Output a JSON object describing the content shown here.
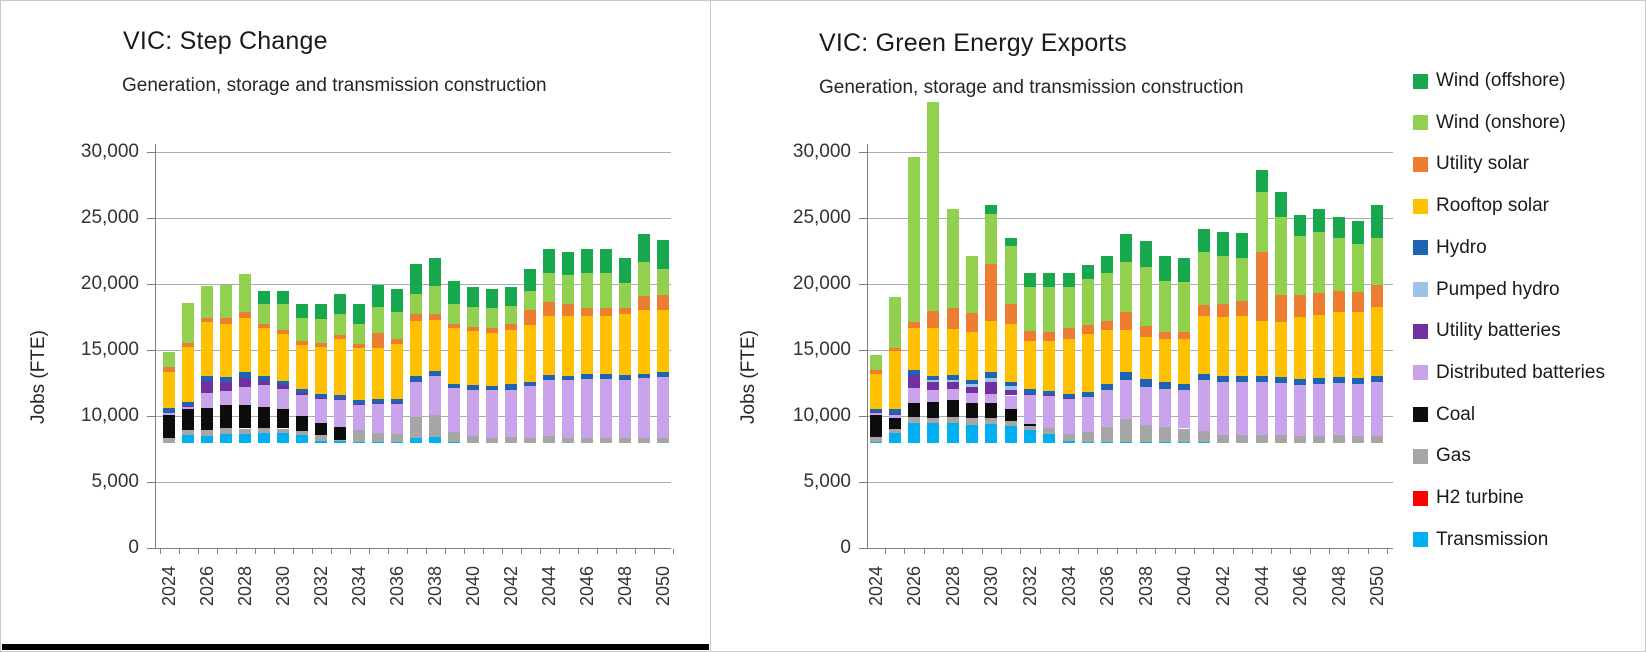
{
  "window": {
    "kind": "report-figure",
    "region": "VIC"
  },
  "legend": {
    "items": [
      {
        "label": "Wind (offshore)",
        "color": "#17a74c"
      },
      {
        "label": "Wind (onshore)",
        "color": "#92d050"
      },
      {
        "label": "Utility solar",
        "color": "#ed7d31"
      },
      {
        "label": "Rooftop solar",
        "color": "#ffc000"
      },
      {
        "label": "Hydro",
        "color": "#1f64b4"
      },
      {
        "label": "Pumped hydro",
        "color": "#9dc3e6"
      },
      {
        "label": "Utility batteries",
        "color": "#7030a0"
      },
      {
        "label": "Distributed batteries",
        "color": "#c9a4ea"
      },
      {
        "label": "Coal",
        "color": "#0d0d0d"
      },
      {
        "label": "Gas",
        "color": "#a6a6a6"
      },
      {
        "label": "H2 turbine",
        "color": "#ff0000"
      },
      {
        "label": "Transmission",
        "color": "#00b0f0"
      }
    ]
  },
  "chart_data": [
    {
      "type": "bar",
      "stacked": true,
      "title": "VIC: Step Change",
      "subtitle": "Generation, storage and transmission construction",
      "ylabel": "Jobs (FTE)",
      "ylim": [
        0,
        30000
      ],
      "grid": true,
      "y_tick_labels": [
        "0",
        "5,000",
        "10,000",
        "15,000",
        "20,000",
        "25,000",
        "30,000"
      ],
      "x_tick_labels_shown": [
        "2024",
        "2026",
        "2028",
        "2030",
        "2032",
        "2034",
        "2036",
        "2038",
        "2040",
        "2042",
        "2044",
        "2046",
        "2048",
        "2050"
      ],
      "categories": [
        2024,
        2025,
        2026,
        2027,
        2028,
        2029,
        2030,
        2031,
        2032,
        2033,
        2034,
        2035,
        2036,
        2037,
        2038,
        2039,
        2040,
        2041,
        2042,
        2043,
        2044,
        2045,
        2046,
        2047,
        2048,
        2049,
        2050
      ],
      "series": [
        {
          "name": "Transmission",
          "color": "#00b0f0",
          "values": [
            0,
            600,
            550,
            650,
            700,
            750,
            750,
            600,
            150,
            150,
            100,
            50,
            50,
            400,
            450,
            50,
            0,
            0,
            0,
            0,
            0,
            0,
            0,
            0,
            0,
            0,
            0
          ]
        },
        {
          "name": "H2 turbine",
          "color": "#ff0000",
          "values": [
            0,
            0,
            0,
            0,
            0,
            0,
            0,
            0,
            0,
            0,
            0,
            0,
            0,
            0,
            0,
            0,
            0,
            0,
            0,
            0,
            0,
            0,
            0,
            0,
            0,
            0,
            0
          ]
        },
        {
          "name": "Gas",
          "color": "#a6a6a6",
          "values": [
            400,
            400,
            450,
            450,
            400,
            400,
            350,
            300,
            450,
            100,
            900,
            700,
            600,
            1600,
            1700,
            800,
            500,
            400,
            450,
            400,
            550,
            350,
            350,
            350,
            350,
            400,
            400
          ]
        },
        {
          "name": "Coal",
          "color": "#0d0d0d",
          "values": [
            1700,
            1550,
            1650,
            1800,
            1800,
            1600,
            1450,
            1150,
            900,
            1000,
            0,
            0,
            0,
            0,
            0,
            0,
            0,
            0,
            0,
            0,
            0,
            0,
            0,
            0,
            0,
            0,
            0
          ]
        },
        {
          "name": "Distributed batteries",
          "color": "#c9a4ea",
          "values": [
            200,
            150,
            1150,
            1050,
            1350,
            1650,
            1550,
            1600,
            1800,
            2000,
            1900,
            2200,
            2300,
            2600,
            2900,
            3300,
            3500,
            3600,
            3600,
            3900,
            4200,
            4400,
            4500,
            4500,
            4400,
            4500,
            4600
          ]
        },
        {
          "name": "Utility batteries",
          "color": "#7030a0",
          "values": [
            0,
            100,
            900,
            700,
            700,
            300,
            300,
            150,
            100,
            100,
            50,
            50,
            100,
            0,
            0,
            0,
            0,
            0,
            0,
            0,
            0,
            0,
            0,
            0,
            0,
            0,
            0
          ]
        },
        {
          "name": "Pumped hydro",
          "color": "#9dc3e6",
          "values": [
            0,
            0,
            0,
            0,
            0,
            0,
            0,
            0,
            0,
            0,
            0,
            0,
            0,
            0,
            0,
            0,
            0,
            0,
            0,
            0,
            0,
            0,
            0,
            0,
            0,
            0,
            0
          ]
        },
        {
          "name": "Hydro",
          "color": "#1f64b4",
          "values": [
            350,
            300,
            350,
            350,
            400,
            350,
            300,
            300,
            300,
            300,
            300,
            300,
            250,
            450,
            400,
            350,
            400,
            350,
            400,
            350,
            400,
            350,
            400,
            400,
            400,
            350,
            350
          ]
        },
        {
          "name": "Rooftop solar",
          "color": "#ffc000",
          "values": [
            2750,
            4200,
            4100,
            4000,
            4100,
            3700,
            3550,
            3300,
            3550,
            4250,
            3950,
            3900,
            4200,
            4200,
            3900,
            4200,
            4100,
            4000,
            4100,
            4300,
            4500,
            4500,
            4400,
            4400,
            4600,
            4800,
            4700
          ]
        },
        {
          "name": "Utility solar",
          "color": "#ed7d31",
          "values": [
            350,
            250,
            350,
            450,
            450,
            300,
            300,
            300,
            300,
            300,
            300,
            1150,
            400,
            500,
            450,
            300,
            300,
            400,
            500,
            1100,
            1000,
            900,
            550,
            550,
            500,
            1100,
            1200
          ]
        },
        {
          "name": "Wind (onshore)",
          "color": "#92d050",
          "values": [
            1150,
            3050,
            2400,
            2500,
            2900,
            1450,
            1950,
            1800,
            1850,
            1600,
            1500,
            1950,
            2000,
            1550,
            2100,
            1550,
            1500,
            1500,
            1300,
            1500,
            2200,
            2200,
            2700,
            2700,
            1850,
            2600,
            1900
          ]
        },
        {
          "name": "Wind (offshore)",
          "color": "#17a74c",
          "values": [
            0,
            0,
            0,
            0,
            0,
            1050,
            1000,
            1000,
            1100,
            1500,
            1550,
            1700,
            1800,
            2250,
            2100,
            1750,
            1500,
            1400,
            1450,
            1650,
            1850,
            1800,
            1800,
            1800,
            1900,
            2100,
            2250
          ]
        }
      ]
    },
    {
      "type": "bar",
      "stacked": true,
      "title": "VIC: Green Energy Exports",
      "subtitle": "Generation, storage and transmission construction",
      "ylabel": "Jobs (FTE)",
      "ylim": [
        0,
        30000
      ],
      "grid": true,
      "y_tick_labels": [
        "0",
        "5,000",
        "10,000",
        "15,000",
        "20,000",
        "25,000",
        "30,000"
      ],
      "x_tick_labels_shown": [
        "2024",
        "2026",
        "2028",
        "2030",
        "2032",
        "2034",
        "2036",
        "2038",
        "2040",
        "2042",
        "2044",
        "2046",
        "2048",
        "2050"
      ],
      "categories": [
        2024,
        2025,
        2026,
        2027,
        2028,
        2029,
        2030,
        2031,
        2032,
        2033,
        2034,
        2035,
        2036,
        2037,
        2038,
        2039,
        2040,
        2041,
        2042,
        2043,
        2044,
        2045,
        2046,
        2047,
        2048,
        2049,
        2050
      ],
      "series": [
        {
          "name": "Transmission",
          "color": "#00b0f0",
          "values": [
            100,
            750,
            1500,
            1500,
            1500,
            1400,
            1450,
            1300,
            1000,
            700,
            150,
            100,
            100,
            100,
            100,
            100,
            100,
            50,
            0,
            0,
            0,
            0,
            0,
            0,
            0,
            0,
            0
          ]
        },
        {
          "name": "H2 turbine",
          "color": "#ff0000",
          "values": [
            0,
            0,
            0,
            0,
            0,
            0,
            0,
            0,
            0,
            0,
            0,
            0,
            0,
            0,
            0,
            0,
            0,
            0,
            0,
            0,
            0,
            0,
            0,
            0,
            0,
            0,
            0
          ]
        },
        {
          "name": "Gas",
          "color": "#a6a6a6",
          "values": [
            350,
            300,
            450,
            400,
            450,
            500,
            450,
            400,
            300,
            450,
            550,
            750,
            1150,
            1750,
            1250,
            1100,
            1000,
            850,
            600,
            600,
            600,
            600,
            500,
            500,
            600,
            500,
            500
          ]
        },
        {
          "name": "Coal",
          "color": "#0d0d0d",
          "values": [
            1650,
            850,
            1100,
            1200,
            1300,
            1100,
            1150,
            900,
            150,
            0,
            0,
            0,
            0,
            0,
            0,
            0,
            0,
            0,
            0,
            0,
            0,
            0,
            0,
            0,
            0,
            0,
            0
          ]
        },
        {
          "name": "Distributed batteries",
          "color": "#c9a4ea",
          "values": [
            150,
            200,
            1100,
            900,
            850,
            800,
            700,
            1000,
            2200,
            2400,
            2600,
            2600,
            2750,
            2900,
            2900,
            2900,
            2900,
            3900,
            4000,
            4000,
            4050,
            3950,
            3900,
            3950,
            3950,
            4000,
            4100
          ]
        },
        {
          "name": "Utility batteries",
          "color": "#7030a0",
          "values": [
            100,
            100,
            1000,
            600,
            500,
            450,
            900,
            400,
            100,
            100,
            100,
            0,
            0,
            0,
            0,
            0,
            0,
            0,
            0,
            0,
            0,
            0,
            0,
            0,
            0,
            0,
            0
          ]
        },
        {
          "name": "Pumped hydro",
          "color": "#9dc3e6",
          "values": [
            0,
            0,
            0,
            150,
            200,
            250,
            300,
            300,
            0,
            0,
            0,
            0,
            0,
            0,
            0,
            0,
            0,
            0,
            0,
            0,
            0,
            0,
            0,
            0,
            0,
            0,
            0
          ]
        },
        {
          "name": "Hydro",
          "color": "#1f64b4",
          "values": [
            250,
            350,
            350,
            350,
            350,
            300,
            400,
            350,
            350,
            300,
            350,
            400,
            450,
            600,
            600,
            500,
            500,
            450,
            450,
            450,
            450,
            450,
            450,
            450,
            450,
            450,
            500
          ]
        },
        {
          "name": "Rooftop solar",
          "color": "#ffc000",
          "values": [
            2600,
            4400,
            3200,
            3600,
            3500,
            3600,
            3900,
            4400,
            3600,
            3800,
            4100,
            4400,
            4100,
            3200,
            3150,
            3300,
            3400,
            4400,
            4500,
            4600,
            4150,
            4200,
            4700,
            4800,
            4950,
            5000,
            5200
          ]
        },
        {
          "name": "Utility solar",
          "color": "#ed7d31",
          "values": [
            300,
            250,
            500,
            1300,
            1550,
            1450,
            4300,
            1500,
            800,
            650,
            900,
            700,
            700,
            1400,
            900,
            500,
            500,
            800,
            1000,
            1100,
            5250,
            2000,
            1700,
            1650,
            1550,
            1500,
            1700
          ]
        },
        {
          "name": "Wind (onshore)",
          "color": "#92d050",
          "values": [
            1200,
            3900,
            12500,
            15800,
            7500,
            4300,
            3800,
            4400,
            3300,
            3400,
            3050,
            3450,
            3600,
            3800,
            4400,
            3900,
            3800,
            4000,
            3600,
            3300,
            4550,
            5900,
            4400,
            4650,
            4000,
            3600,
            3500
          ]
        },
        {
          "name": "Wind (offshore)",
          "color": "#17a74c",
          "values": [
            0,
            0,
            0,
            0,
            0,
            0,
            650,
            550,
            1100,
            1100,
            1100,
            1100,
            1350,
            2100,
            2000,
            1900,
            1800,
            1750,
            1850,
            1850,
            1600,
            1900,
            1650,
            1700,
            1600,
            1800,
            2500
          ]
        }
      ]
    }
  ]
}
